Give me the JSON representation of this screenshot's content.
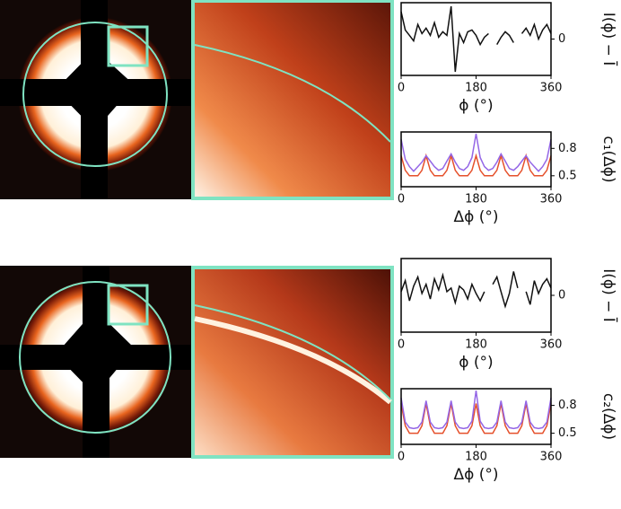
{
  "chart_data": [
    {
      "type": "line",
      "xlabel": "ϕ (°)",
      "ylabel": "I(ϕ) − Ī",
      "x": [
        0,
        10,
        20,
        30,
        40,
        50,
        60,
        70,
        80,
        90,
        100,
        110,
        120,
        130,
        140,
        150,
        160,
        170,
        180,
        190,
        200,
        210,
        220,
        230,
        240,
        250,
        260,
        270,
        280,
        290,
        300,
        310,
        320,
        330,
        340,
        350,
        360
      ],
      "xlim": [
        0,
        360
      ],
      "xticks": [
        0,
        180,
        360
      ],
      "ylim": [
        -2,
        2
      ],
      "yticks": [
        0
      ],
      "series": [
        {
          "color": "#111111",
          "values": [
            1.5,
            0.5,
            0.2,
            -0.1,
            0.8,
            0.3,
            0.6,
            0.2,
            0.9,
            0.1,
            0.4,
            0.2,
            1.8,
            -1.8,
            0.3,
            -0.2,
            0.4,
            0.5,
            0.2,
            -0.3,
            0.1,
            0.3,
            null,
            -0.3,
            0.1,
            0.4,
            0.2,
            -0.2,
            null,
            0.3,
            0.6,
            0.2,
            0.8,
            0.0,
            0.5,
            0.8,
            0.3
          ]
        }
      ]
    },
    {
      "type": "line",
      "xlabel": "Δϕ (°)",
      "ylabel": "c₁(Δϕ)",
      "x": [
        0,
        10,
        20,
        30,
        40,
        50,
        60,
        70,
        80,
        90,
        100,
        110,
        120,
        130,
        140,
        150,
        160,
        170,
        180,
        190,
        200,
        210,
        220,
        230,
        240,
        250,
        260,
        270,
        280,
        290,
        300,
        310,
        320,
        330,
        340,
        350,
        360
      ],
      "xlim": [
        0,
        360
      ],
      "xticks": [
        0,
        180,
        360
      ],
      "ylim": [
        0.38,
        0.98
      ],
      "yticks": [
        0.5,
        0.8
      ],
      "series": [
        {
          "color": "#e5502b",
          "values": [
            0.72,
            0.56,
            0.5,
            0.5,
            0.5,
            0.56,
            0.72,
            0.56,
            0.5,
            0.5,
            0.5,
            0.56,
            0.72,
            0.56,
            0.5,
            0.5,
            0.5,
            0.56,
            0.72,
            0.56,
            0.5,
            0.5,
            0.5,
            0.56,
            0.72,
            0.56,
            0.5,
            0.5,
            0.5,
            0.56,
            0.72,
            0.56,
            0.5,
            0.5,
            0.5,
            0.56,
            0.72
          ]
        },
        {
          "color": "#9466e6",
          "values": [
            0.9,
            0.68,
            0.6,
            0.55,
            0.6,
            0.65,
            0.72,
            0.66,
            0.6,
            0.56,
            0.58,
            0.66,
            0.74,
            0.65,
            0.58,
            0.56,
            0.6,
            0.7,
            0.96,
            0.7,
            0.6,
            0.56,
            0.58,
            0.65,
            0.74,
            0.66,
            0.58,
            0.56,
            0.6,
            0.66,
            0.72,
            0.65,
            0.6,
            0.55,
            0.6,
            0.68,
            0.9
          ]
        }
      ]
    },
    {
      "type": "line",
      "xlabel": "ϕ (°)",
      "ylabel": "I(ϕ) − Ī",
      "x": [
        0,
        10,
        20,
        30,
        40,
        50,
        60,
        70,
        80,
        90,
        100,
        110,
        120,
        130,
        140,
        150,
        160,
        170,
        180,
        190,
        200,
        210,
        220,
        230,
        240,
        250,
        260,
        270,
        280,
        290,
        300,
        310,
        320,
        330,
        340,
        350,
        360
      ],
      "xlim": [
        0,
        360
      ],
      "xticks": [
        0,
        180,
        360
      ],
      "ylim": [
        -2,
        2
      ],
      "yticks": [
        0
      ],
      "series": [
        {
          "color": "#111111",
          "values": [
            0.2,
            0.8,
            -0.3,
            0.5,
            1.0,
            0.1,
            0.6,
            -0.2,
            0.9,
            0.3,
            1.1,
            0.2,
            0.4,
            -0.4,
            0.5,
            0.3,
            -0.2,
            0.6,
            0.1,
            -0.3,
            0.2,
            null,
            0.6,
            1.0,
            0.2,
            -0.6,
            0.1,
            1.3,
            0.4,
            null,
            0.2,
            -0.5,
            0.8,
            0.1,
            0.6,
            0.9,
            0.4
          ]
        }
      ]
    },
    {
      "type": "line",
      "xlabel": "Δϕ (°)",
      "ylabel": "c₂(Δϕ)",
      "x": [
        0,
        10,
        20,
        30,
        40,
        50,
        60,
        70,
        80,
        90,
        100,
        110,
        120,
        130,
        140,
        150,
        160,
        170,
        180,
        190,
        200,
        210,
        220,
        230,
        240,
        250,
        260,
        270,
        280,
        290,
        300,
        310,
        320,
        330,
        340,
        350,
        360
      ],
      "xlim": [
        0,
        360
      ],
      "xticks": [
        0,
        180,
        360
      ],
      "ylim": [
        0.38,
        0.98
      ],
      "yticks": [
        0.5,
        0.8
      ],
      "series": [
        {
          "color": "#e5502b",
          "values": [
            0.82,
            0.58,
            0.5,
            0.5,
            0.5,
            0.58,
            0.82,
            0.58,
            0.5,
            0.5,
            0.5,
            0.58,
            0.82,
            0.58,
            0.5,
            0.5,
            0.5,
            0.58,
            0.82,
            0.58,
            0.5,
            0.5,
            0.5,
            0.58,
            0.82,
            0.58,
            0.5,
            0.5,
            0.5,
            0.58,
            0.82,
            0.58,
            0.5,
            0.5,
            0.5,
            0.58,
            0.82
          ]
        },
        {
          "color": "#9466e6",
          "values": [
            0.88,
            0.62,
            0.56,
            0.55,
            0.56,
            0.62,
            0.85,
            0.62,
            0.56,
            0.55,
            0.56,
            0.62,
            0.85,
            0.62,
            0.56,
            0.55,
            0.56,
            0.63,
            0.96,
            0.63,
            0.56,
            0.55,
            0.56,
            0.62,
            0.85,
            0.62,
            0.56,
            0.55,
            0.56,
            0.62,
            0.85,
            0.62,
            0.56,
            0.55,
            0.56,
            0.62,
            0.88
          ]
        }
      ]
    }
  ]
}
